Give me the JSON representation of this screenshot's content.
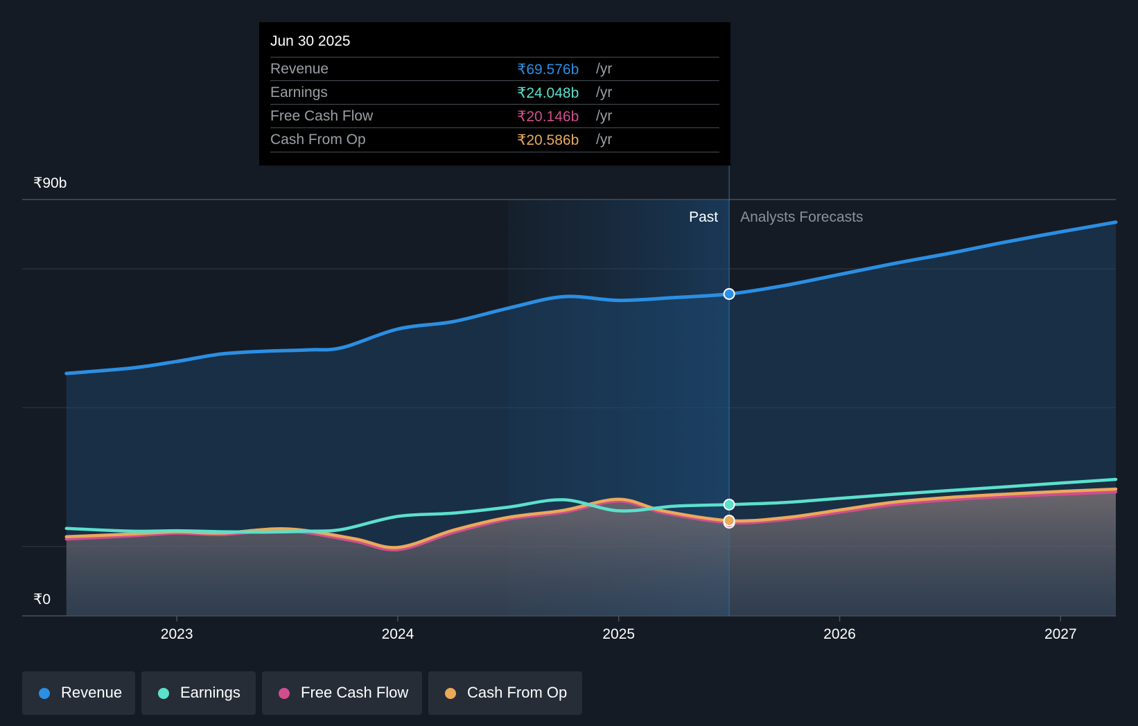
{
  "chart_data": {
    "type": "area",
    "currency_prefix": "₹",
    "y_axis_labels": [
      "₹90b",
      "₹0"
    ],
    "ylim": [
      0,
      90
    ],
    "x_ticks": [
      {
        "label": "2023",
        "t": 2023.0
      },
      {
        "label": "2024",
        "t": 2024.0
      },
      {
        "label": "2025",
        "t": 2025.0
      },
      {
        "label": "2026",
        "t": 2026.0
      },
      {
        "label": "2027",
        "t": 2027.0
      }
    ],
    "x_range": [
      2022.3,
      2027.25
    ],
    "past_label": "Past",
    "forecast_label": "Analysts Forecasts",
    "past_shade_start": 2024.5,
    "divider_t": 2025.5,
    "series": [
      {
        "name": "Revenue",
        "color": "#2b8fe3",
        "points": [
          [
            2022.5,
            52.4
          ],
          [
            2022.8,
            53.6
          ],
          [
            2023.0,
            55.0
          ],
          [
            2023.2,
            56.6
          ],
          [
            2023.4,
            57.2
          ],
          [
            2023.6,
            57.5
          ],
          [
            2023.75,
            58.0
          ],
          [
            2024.0,
            62.0
          ],
          [
            2024.25,
            63.6
          ],
          [
            2024.5,
            66.5
          ],
          [
            2024.75,
            69.0
          ],
          [
            2025.0,
            68.2
          ],
          [
            2025.25,
            68.8
          ],
          [
            2025.5,
            69.576
          ],
          [
            2025.75,
            71.4
          ],
          [
            2026.0,
            73.8
          ],
          [
            2026.25,
            76.2
          ],
          [
            2026.5,
            78.4
          ],
          [
            2026.75,
            80.8
          ],
          [
            2027.0,
            83.0
          ],
          [
            2027.25,
            85.1
          ]
        ]
      },
      {
        "name": "Earnings",
        "color": "#5be0cc",
        "points": [
          [
            2022.5,
            18.9
          ],
          [
            2022.8,
            18.3
          ],
          [
            2023.0,
            18.4
          ],
          [
            2023.2,
            18.2
          ],
          [
            2023.4,
            18.1
          ],
          [
            2023.6,
            18.3
          ],
          [
            2023.75,
            18.7
          ],
          [
            2024.0,
            21.5
          ],
          [
            2024.25,
            22.2
          ],
          [
            2024.5,
            23.5
          ],
          [
            2024.75,
            25.1
          ],
          [
            2025.0,
            22.7
          ],
          [
            2025.25,
            23.7
          ],
          [
            2025.5,
            24.048
          ],
          [
            2025.75,
            24.5
          ],
          [
            2026.0,
            25.4
          ],
          [
            2026.25,
            26.3
          ],
          [
            2026.5,
            27.1
          ],
          [
            2026.75,
            27.9
          ],
          [
            2027.0,
            28.7
          ],
          [
            2027.25,
            29.5
          ]
        ]
      },
      {
        "name": "Free Cash Flow",
        "color": "#d14e8e",
        "points": [
          [
            2022.5,
            16.6
          ],
          [
            2022.8,
            17.3
          ],
          [
            2023.0,
            17.9
          ],
          [
            2023.2,
            17.6
          ],
          [
            2023.5,
            18.4
          ],
          [
            2023.8,
            16.2
          ],
          [
            2024.0,
            14.3
          ],
          [
            2024.25,
            18.0
          ],
          [
            2024.5,
            20.9
          ],
          [
            2024.75,
            22.4
          ],
          [
            2025.0,
            24.8
          ],
          [
            2025.2,
            22.3
          ],
          [
            2025.5,
            20.146
          ],
          [
            2025.75,
            20.8
          ],
          [
            2026.0,
            22.4
          ],
          [
            2026.25,
            24.1
          ],
          [
            2026.5,
            25.1
          ],
          [
            2026.75,
            25.8
          ],
          [
            2027.0,
            26.3
          ],
          [
            2027.25,
            26.8
          ]
        ]
      },
      {
        "name": "Cash From Op",
        "color": "#eaaa5a",
        "points": [
          [
            2022.5,
            17.1
          ],
          [
            2022.8,
            17.7
          ],
          [
            2023.0,
            18.2
          ],
          [
            2023.2,
            17.9
          ],
          [
            2023.5,
            18.8
          ],
          [
            2023.8,
            16.7
          ],
          [
            2024.0,
            14.8
          ],
          [
            2024.25,
            18.5
          ],
          [
            2024.5,
            21.3
          ],
          [
            2024.75,
            22.8
          ],
          [
            2025.0,
            25.2
          ],
          [
            2025.2,
            22.7
          ],
          [
            2025.5,
            20.586
          ],
          [
            2025.75,
            21.2
          ],
          [
            2026.0,
            22.9
          ],
          [
            2026.25,
            24.6
          ],
          [
            2026.5,
            25.6
          ],
          [
            2026.75,
            26.3
          ],
          [
            2027.0,
            26.9
          ],
          [
            2027.25,
            27.4
          ]
        ]
      }
    ]
  },
  "tooltip": {
    "date": "Jun 30 2025",
    "rows": [
      {
        "label": "Revenue",
        "value": "₹69.576b",
        "unit": "/yr",
        "color": "#2b8fe3"
      },
      {
        "label": "Earnings",
        "value": "₹24.048b",
        "unit": "/yr",
        "color": "#5be0cc"
      },
      {
        "label": "Free Cash Flow",
        "value": "₹20.146b",
        "unit": "/yr",
        "color": "#d14e8e"
      },
      {
        "label": "Cash From Op",
        "value": "₹20.586b",
        "unit": "/yr",
        "color": "#eaaa5a"
      }
    ]
  },
  "legend": {
    "items": [
      {
        "label": "Revenue",
        "color": "#2b8fe3"
      },
      {
        "label": "Earnings",
        "color": "#5be0cc"
      },
      {
        "label": "Free Cash Flow",
        "color": "#d14e8e"
      },
      {
        "label": "Cash From Op",
        "color": "#eaaa5a"
      }
    ]
  }
}
